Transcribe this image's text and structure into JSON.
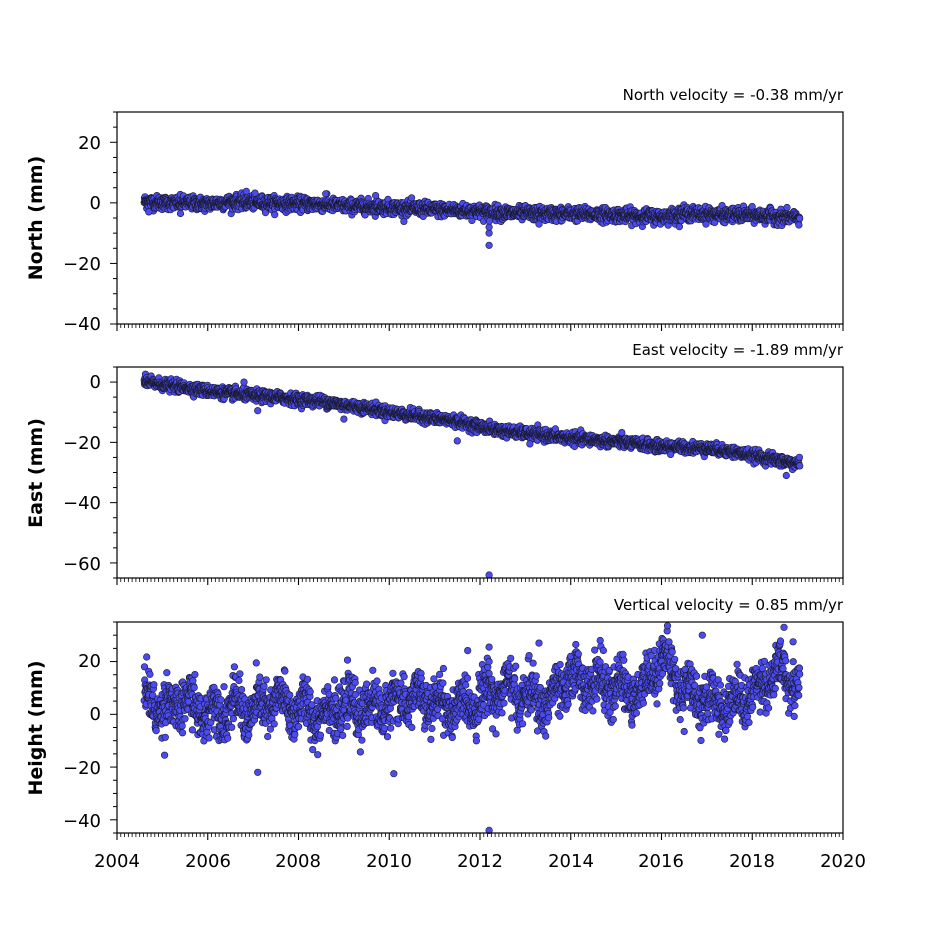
{
  "colors": {
    "marker_fill": "#4b4bf0",
    "marker_edge": "#1a1a2e",
    "axes": "#000000",
    "background": "#ffffff"
  },
  "x_axis": {
    "label": "",
    "xlim": [
      2004,
      2020
    ],
    "tick_labels": [
      "2004",
      "2006",
      "2008",
      "2010",
      "2012",
      "2014",
      "2016",
      "2018",
      "2020"
    ],
    "minor_tick_step_months": 1
  },
  "chart_data": [
    {
      "type": "scatter",
      "title": "North velocity = -0.38 mm/yr",
      "ylabel": "North (mm)",
      "xlim": [
        2004,
        2020
      ],
      "ylim": [
        -40,
        30
      ],
      "y_ticks": [
        20,
        0,
        -20,
        -40
      ],
      "y_tick_labels": [
        "20",
        "0",
        "−20",
        "−40"
      ],
      "y_minor_step": 5,
      "time_range": [
        2004.6,
        2019.05
      ],
      "series": [
        {
          "x": [
            2004.6,
            2005.0,
            2005.5,
            2006.0,
            2006.5,
            2007.0,
            2007.5,
            2008.0,
            2008.5,
            2009.0,
            2009.5,
            2010.0,
            2010.5,
            2011.0,
            2011.5,
            2012.0,
            2012.5,
            2013.0,
            2013.5,
            2014.0,
            2014.5,
            2015.0,
            2015.5,
            2016.0,
            2016.5,
            2017.0,
            2017.5,
            2018.0,
            2018.5,
            2019.05
          ],
          "y": [
            0.5,
            0.0,
            0.0,
            -0.3,
            0.3,
            0.2,
            -0.2,
            -0.3,
            -0.5,
            -1.0,
            -1.2,
            -1.5,
            -1.8,
            -2.2,
            -2.5,
            -2.8,
            -3.3,
            -3.5,
            -3.7,
            -3.6,
            -3.8,
            -4.0,
            -4.3,
            -4.6,
            -3.5,
            -3.8,
            -4.0,
            -4.1,
            -4.5,
            -5.0
          ]
        }
      ],
      "scatter_sd": 1.1,
      "outliers": [
        {
          "x": 2012.2,
          "y": -14
        },
        {
          "x": 2012.2,
          "y": -10
        },
        {
          "x": 2012.2,
          "y": -8
        },
        {
          "x": 2012.21,
          "y": -6
        },
        {
          "x": 2006.85,
          "y": 3.8
        },
        {
          "x": 2008.6,
          "y": 3.0
        },
        {
          "x": 2009.7,
          "y": 2.4
        },
        {
          "x": 2004.7,
          "y": -3.0
        },
        {
          "x": 2005.4,
          "y": -3.5
        },
        {
          "x": 2013.3,
          "y": -7.0
        }
      ]
    },
    {
      "type": "scatter",
      "title": "East velocity = -1.89 mm/yr",
      "ylabel": "East (mm)",
      "xlim": [
        2004,
        2020
      ],
      "ylim": [
        -65,
        5
      ],
      "y_ticks": [
        0,
        -20,
        -40,
        -60
      ],
      "y_tick_labels": [
        "0",
        "−20",
        "−40",
        "−60"
      ],
      "y_minor_step": 5,
      "time_range": [
        2004.6,
        2019.05
      ],
      "series": [
        {
          "x": [
            2004.6,
            2005.5,
            2006.0,
            2006.5,
            2007.0,
            2007.5,
            2008.0,
            2008.5,
            2009.0,
            2009.5,
            2010.0,
            2010.5,
            2011.0,
            2011.5,
            2012.0,
            2012.5,
            2013.0,
            2013.5,
            2014.0,
            2014.5,
            2015.0,
            2015.5,
            2016.0,
            2016.5,
            2017.0,
            2017.5,
            2018.0,
            2018.5,
            2019.05
          ],
          "y": [
            0.0,
            -1.8,
            -3.0,
            -3.8,
            -4.5,
            -5.0,
            -5.8,
            -6.3,
            -7.6,
            -8.6,
            -10.0,
            -11.0,
            -12.0,
            -13.0,
            -14.8,
            -16.2,
            -17.0,
            -17.8,
            -18.6,
            -19.2,
            -19.8,
            -20.6,
            -21.4,
            -21.6,
            -22.0,
            -23.0,
            -24.3,
            -25.8,
            -27.3
          ]
        }
      ],
      "scatter_sd": 0.9,
      "outliers": [
        {
          "x": 2012.2,
          "y": -64
        },
        {
          "x": 2011.5,
          "y": -19.5
        },
        {
          "x": 2007.1,
          "y": -9.5
        },
        {
          "x": 2009.0,
          "y": -12.3
        },
        {
          "x": 2006.8,
          "y": 0.0
        },
        {
          "x": 2018.75,
          "y": -31
        },
        {
          "x": 2013.1,
          "y": -20.5
        },
        {
          "x": 2016.2,
          "y": -24.0
        }
      ]
    },
    {
      "type": "scatter",
      "title": "Vertical velocity = 0.85 mm/yr",
      "ylabel": "Height (mm)",
      "xlim": [
        2004,
        2020
      ],
      "ylim": [
        -45,
        35
      ],
      "y_ticks": [
        20,
        0,
        -20,
        -40
      ],
      "y_tick_labels": [
        "20",
        "0",
        "−20",
        "−40"
      ],
      "y_minor_step": 5,
      "time_range": [
        2004.6,
        2019.05
      ],
      "series": [
        {
          "x": [
            2004.6,
            2005.0,
            2005.5,
            2006.0,
            2006.5,
            2007.0,
            2007.5,
            2008.0,
            2008.5,
            2009.0,
            2009.5,
            2010.0,
            2010.5,
            2011.0,
            2011.5,
            2012.0,
            2012.5,
            2013.0,
            2013.5,
            2014.0,
            2014.5,
            2015.0,
            2015.5,
            2016.0,
            2016.5,
            2017.0,
            2017.5,
            2018.0,
            2018.5,
            2019.05
          ],
          "y": [
            8.0,
            2.0,
            5.0,
            0.0,
            3.0,
            1.0,
            5.0,
            2.0,
            0.0,
            3.0,
            2.0,
            4.0,
            6.0,
            4.0,
            2.0,
            6.0,
            10.0,
            7.0,
            4.0,
            14.0,
            12.0,
            10.0,
            8.0,
            22.0,
            10.0,
            5.0,
            4.0,
            8.0,
            16.0,
            12.0
          ]
        }
      ],
      "scatter_sd": 4.5,
      "seasonal_amplitude": 4.0,
      "outliers": [
        {
          "x": 2012.2,
          "y": -44
        },
        {
          "x": 2007.1,
          "y": -22
        },
        {
          "x": 2010.1,
          "y": -22.5
        },
        {
          "x": 2005.05,
          "y": -15.5
        },
        {
          "x": 2018.7,
          "y": 33
        },
        {
          "x": 2012.2,
          "y": 25.5
        },
        {
          "x": 2012.2,
          "y": 20.0
        },
        {
          "x": 2013.3,
          "y": 27.0
        },
        {
          "x": 2016.9,
          "y": 30.0
        },
        {
          "x": 2014.65,
          "y": 28.0
        },
        {
          "x": 2018.9,
          "y": 27.5
        },
        {
          "x": 2016.5,
          "y": -6.5
        }
      ]
    }
  ]
}
